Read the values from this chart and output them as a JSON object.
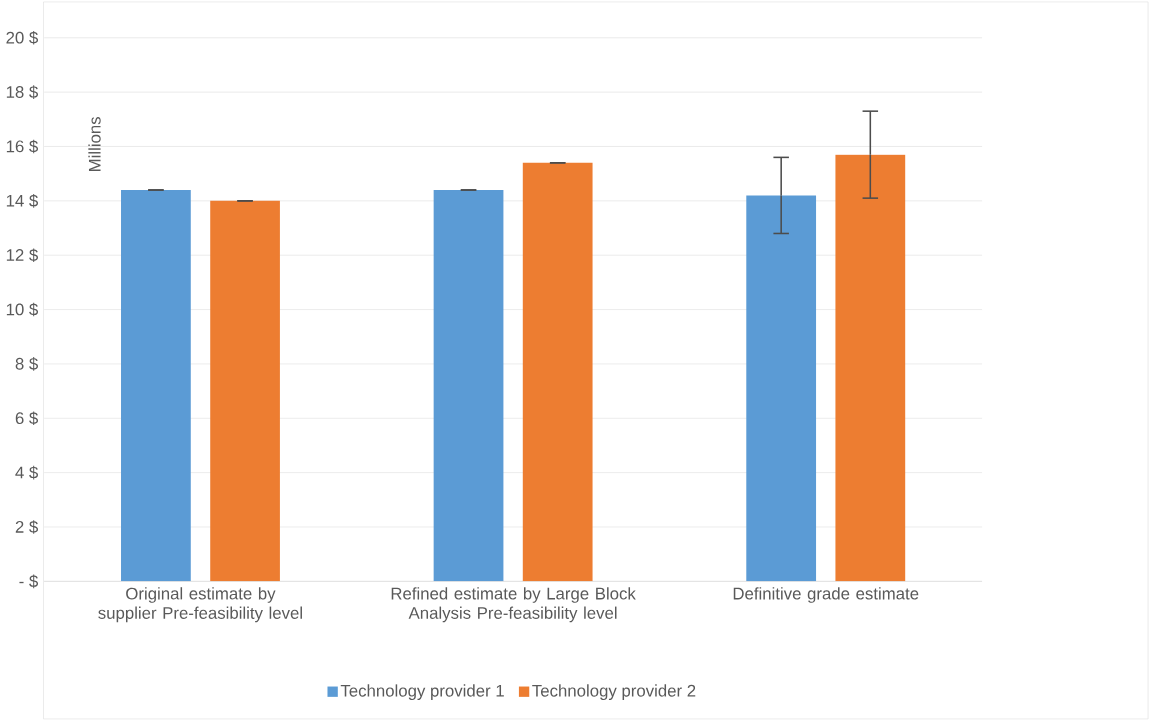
{
  "chart_data": {
    "type": "bar",
    "ylabel": "Millions",
    "categories": [
      "Original estimate by supplier Pre-feasibility level",
      "Refined estimate by Large Block Analysis Pre-feasibility level",
      "Definitive grade estimate"
    ],
    "series": [
      {
        "name": "Technology provider 1",
        "color": "#5b9bd5",
        "values": [
          14.4,
          14.4,
          14.2
        ],
        "errors": [
          0,
          0,
          1.4
        ]
      },
      {
        "name": "Technology provider 2",
        "color": "#ed7d31",
        "values": [
          14.0,
          15.4,
          15.7
        ],
        "errors": [
          0,
          0,
          1.6
        ]
      }
    ],
    "ylim": [
      0,
      20
    ],
    "yticks": [
      {
        "value": 0,
        "label": "-  $"
      },
      {
        "value": 2,
        "label": "2 $"
      },
      {
        "value": 4,
        "label": "4 $"
      },
      {
        "value": 6,
        "label": "6 $"
      },
      {
        "value": 8,
        "label": "8 $"
      },
      {
        "value": 10,
        "label": "10 $"
      },
      {
        "value": 12,
        "label": "12 $"
      },
      {
        "value": 14,
        "label": "14 $"
      },
      {
        "value": 16,
        "label": "16 $"
      },
      {
        "value": 18,
        "label": "18 $"
      },
      {
        "value": 20,
        "label": "20 $"
      }
    ],
    "grid": "y",
    "legend": "bottom"
  }
}
